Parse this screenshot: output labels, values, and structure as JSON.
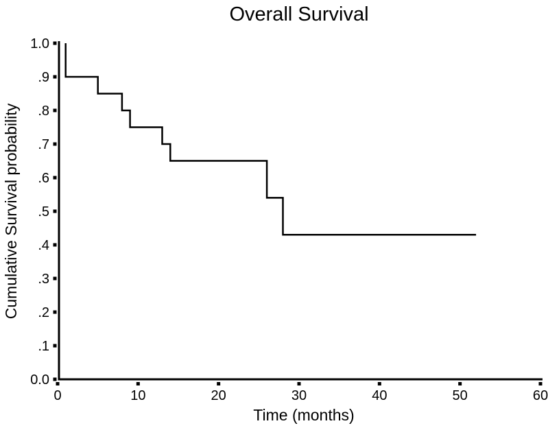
{
  "figure": {
    "background_color": "#ffffff"
  },
  "chart_data": {
    "type": "line",
    "subtype": "kaplan-meier-step",
    "title": "Overall Survival",
    "xlabel": "Time (months)",
    "ylabel": "Cumulative Survival probability",
    "xlim": [
      0,
      60
    ],
    "ylim": [
      0.0,
      1.0
    ],
    "grid": false,
    "legend": "none",
    "axis_color": "#000000",
    "tick_style": "square-markers-outside",
    "x_ticks": [
      {
        "value": 0,
        "label": "0"
      },
      {
        "value": 10,
        "label": "10"
      },
      {
        "value": 20,
        "label": "20"
      },
      {
        "value": 30,
        "label": "30"
      },
      {
        "value": 40,
        "label": "40"
      },
      {
        "value": 50,
        "label": "50"
      },
      {
        "value": 60,
        "label": "60"
      }
    ],
    "y_ticks": [
      {
        "value": 0.0,
        "label": "0.0"
      },
      {
        "value": 0.1,
        "label": ".1"
      },
      {
        "value": 0.2,
        "label": ".2"
      },
      {
        "value": 0.3,
        "label": ".3"
      },
      {
        "value": 0.4,
        "label": ".4"
      },
      {
        "value": 0.5,
        "label": ".5"
      },
      {
        "value": 0.6,
        "label": ".6"
      },
      {
        "value": 0.7,
        "label": ".7"
      },
      {
        "value": 0.8,
        "label": ".8"
      },
      {
        "value": 0.9,
        "label": ".9"
      },
      {
        "value": 1.0,
        "label": "1.0"
      }
    ],
    "series": [
      {
        "name": "Overall survival",
        "color": "#000000",
        "points": [
          [
            1,
            1.0
          ],
          [
            1,
            0.9
          ],
          [
            5,
            0.9
          ],
          [
            5,
            0.85
          ],
          [
            8,
            0.85
          ],
          [
            8,
            0.8
          ],
          [
            9,
            0.8
          ],
          [
            9,
            0.75
          ],
          [
            13,
            0.75
          ],
          [
            13,
            0.7
          ],
          [
            14,
            0.7
          ],
          [
            14,
            0.65
          ],
          [
            26,
            0.65
          ],
          [
            26,
            0.54
          ],
          [
            28,
            0.54
          ],
          [
            28,
            0.43
          ],
          [
            52,
            0.43
          ]
        ]
      }
    ]
  }
}
